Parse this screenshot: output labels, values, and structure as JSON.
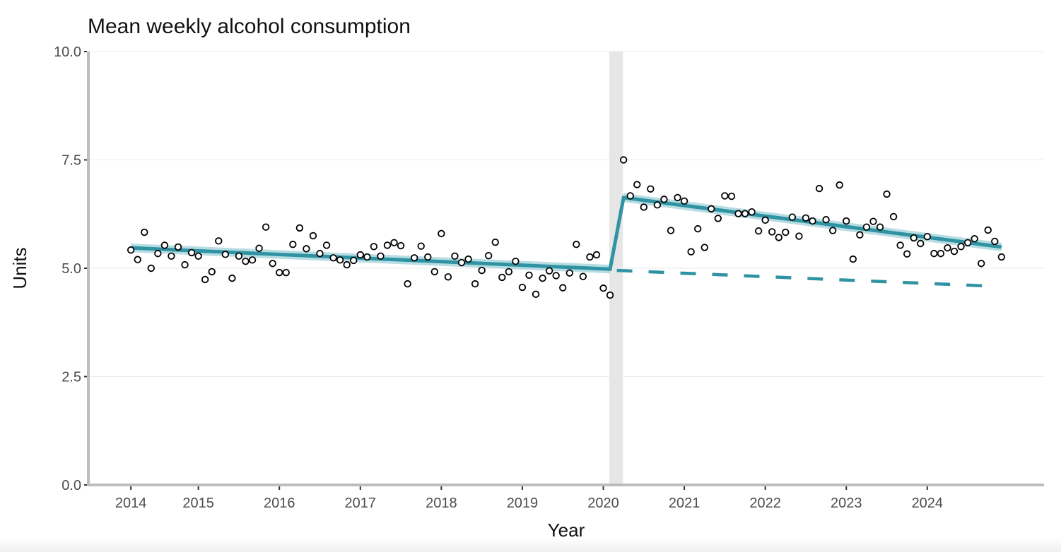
{
  "chart_data": {
    "type": "scatter",
    "title": "Mean weekly alcohol consumption",
    "xlabel": "Year",
    "ylabel": "Units",
    "ylim": [
      0,
      10
    ],
    "yticks": [
      "0.0",
      "2.5",
      "5.0",
      "7.5",
      "10.0"
    ],
    "ytick_values": [
      0,
      2.5,
      5,
      7.5,
      10
    ],
    "x_unit": "months since March 2014",
    "xlim": [
      -6.3,
      135.3
    ],
    "xticks": [
      {
        "label": "2014",
        "month": 0
      },
      {
        "label": "2015",
        "month": 10
      },
      {
        "label": "2016",
        "month": 22
      },
      {
        "label": "2017",
        "month": 34
      },
      {
        "label": "2018",
        "month": 46
      },
      {
        "label": "2019",
        "month": 58
      },
      {
        "label": "2020",
        "month": 70
      },
      {
        "label": "2021",
        "month": 82
      },
      {
        "label": "2022",
        "month": 94
      },
      {
        "label": "2023",
        "month": 106
      },
      {
        "label": "2024",
        "month": 118
      }
    ],
    "grid": "horizontal",
    "intervention_band": {
      "start_month": 70.9,
      "end_month": 72.9,
      "color": "#e6e6e6"
    },
    "series": [
      {
        "name": "Observed (pre-intervention)",
        "kind": "points",
        "start_month": 0,
        "values": [
          5.42,
          5.2,
          5.83,
          5.0,
          5.34,
          5.53,
          5.28,
          5.49,
          5.08,
          5.36,
          5.28,
          4.74,
          4.92,
          5.63,
          5.32,
          4.77,
          5.28,
          5.16,
          5.19,
          5.46,
          5.95,
          5.11,
          4.9,
          4.9,
          5.55,
          5.93,
          5.45,
          5.75,
          5.34,
          5.53,
          5.24,
          5.19,
          5.08,
          5.18,
          5.31,
          5.26,
          5.5,
          5.28,
          5.53,
          5.59,
          5.52,
          4.64,
          5.24,
          5.51,
          5.26,
          4.92,
          5.8,
          4.8,
          5.28,
          5.13,
          5.21,
          4.64,
          4.95,
          5.29,
          5.6,
          4.79,
          4.92,
          5.16,
          4.56,
          4.84,
          4.4,
          4.77,
          4.94,
          4.83,
          4.55,
          4.89,
          5.55,
          4.81,
          5.26,
          5.31,
          4.54,
          4.38
        ]
      },
      {
        "name": "Observed (post-intervention)",
        "kind": "points",
        "start_month": 73,
        "values": [
          7.5,
          6.67,
          6.93,
          6.41,
          6.83,
          6.46,
          6.59,
          5.87,
          6.63,
          6.55,
          5.38,
          5.91,
          5.48,
          6.37,
          6.15,
          6.67,
          6.66,
          6.26,
          6.26,
          6.3,
          5.86,
          6.11,
          5.84,
          5.71,
          5.83,
          6.18,
          5.74,
          6.16,
          6.09,
          6.84,
          6.12,
          5.87,
          6.92,
          6.09,
          5.21,
          5.77,
          5.95,
          6.08,
          5.95,
          6.71,
          6.19,
          5.53,
          5.33,
          5.7,
          5.57,
          5.73,
          5.34,
          5.34,
          5.47,
          5.39,
          5.5,
          5.59,
          5.68,
          5.11,
          5.88,
          5.62,
          5.26
        ]
      },
      {
        "name": "Fitted trend",
        "kind": "line",
        "color": "#2f93a3",
        "points": [
          [
            0,
            5.47
          ],
          [
            71,
            4.98
          ],
          [
            73,
            6.63
          ],
          [
            129,
            5.49
          ]
        ],
        "ci_halfwidth": 0.1
      },
      {
        "name": "Counterfactual trend",
        "kind": "dashed-line",
        "color": "#2f93a3",
        "points": [
          [
            72,
            4.95
          ],
          [
            127,
            4.59
          ]
        ]
      }
    ]
  }
}
